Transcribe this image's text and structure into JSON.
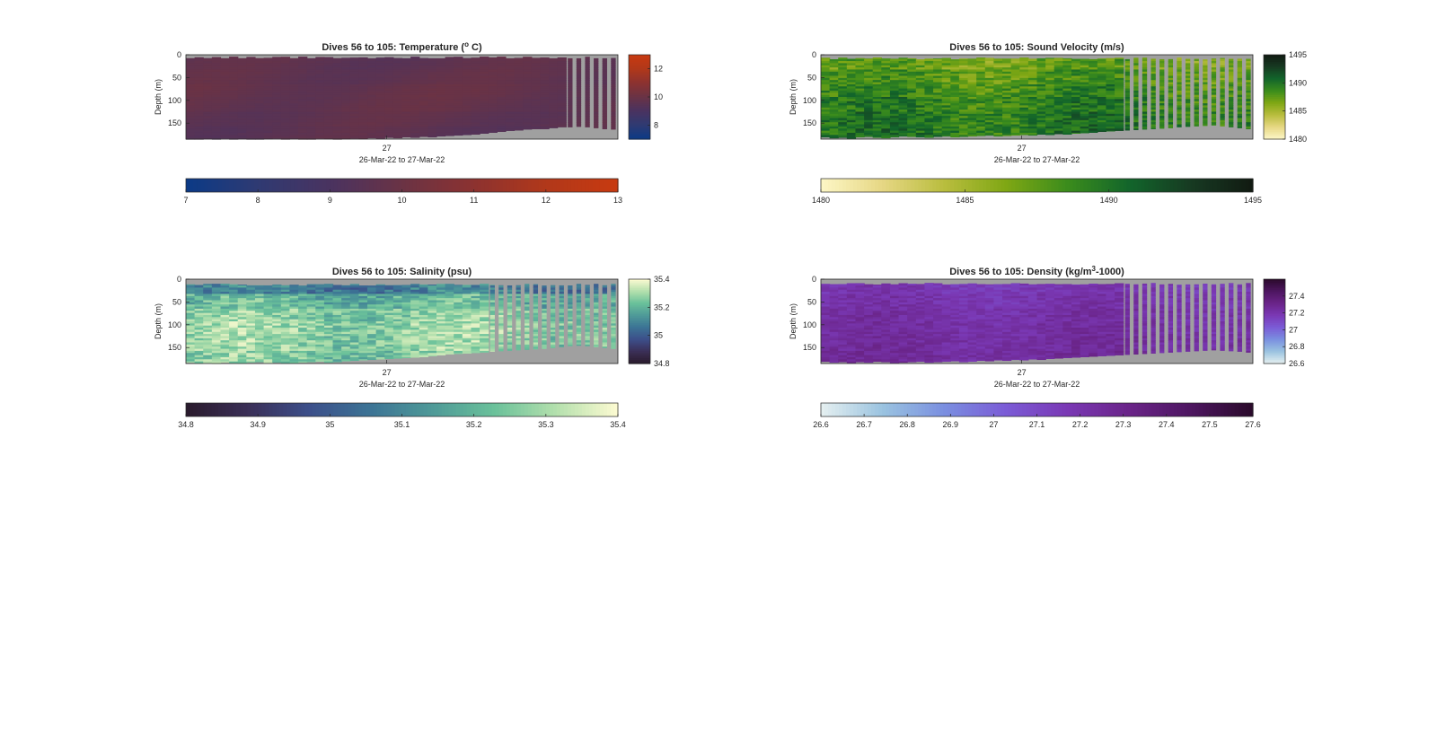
{
  "figure": {
    "background": "#ffffff",
    "nodata_color": "#a0a0a0"
  },
  "chart_data": [
    {
      "type": "heatmap",
      "title": "Dives 56 to 105: Temperature (",
      "title_sup": "o",
      "title_suffix": " C)",
      "xlabel": "26-Mar-22 to 27-Mar-22",
      "ylabel": "Depth (m)",
      "x_ticks": [
        "27"
      ],
      "x_tick_fraction": 0.465,
      "y_ticks": [
        0,
        50,
        100,
        150
      ],
      "ylim": [
        0,
        185
      ],
      "dives": [
        56,
        105
      ],
      "bottom_depths": [
        185,
        186,
        184,
        185,
        183,
        186,
        184,
        185,
        186,
        184,
        183,
        185,
        184,
        186,
        185,
        183,
        184,
        185,
        184,
        183,
        184,
        182,
        183,
        181,
        182,
        180,
        181,
        179,
        180,
        178,
        177,
        176,
        175,
        174,
        172,
        170,
        168,
        166,
        165,
        163,
        162,
        162,
        160,
        158,
        158,
        157,
        158,
        160,
        162,
        163
      ],
      "surface_gap": 4,
      "striped_from_dive": 100,
      "value_pattern": "smooth",
      "field_base": 9.6,
      "field_amp": 0.35,
      "vertical_pattern": [
        0.0,
        0.2,
        0.5,
        0.4,
        0.1,
        -0.2
      ],
      "colormap": {
        "name": "thermal",
        "stops": [
          "#0b3a86",
          "#2f3a72",
          "#4a3360",
          "#6a3345",
          "#8c3230",
          "#b1381a",
          "#c83a10"
        ],
        "min": 7,
        "max": 13
      },
      "side_colorbar_ticks": [
        8,
        10,
        12
      ],
      "bottom_colorbar_ticks": [
        7,
        8,
        9,
        10,
        11,
        12,
        13
      ]
    },
    {
      "type": "heatmap",
      "title": "Dives 56 to 105: Sound Velocity (m/s)",
      "title_sup": "",
      "title_suffix": "",
      "xlabel": "26-Mar-22 to 27-Mar-22",
      "ylabel": "Depth (m)",
      "x_ticks": [
        "27"
      ],
      "x_tick_fraction": 0.465,
      "y_ticks": [
        0,
        50,
        100,
        150
      ],
      "ylim": [
        0,
        185
      ],
      "dives": [
        56,
        105
      ],
      "bottom_depths": [
        180,
        182,
        181,
        183,
        180,
        179,
        181,
        182,
        180,
        178,
        179,
        180,
        181,
        179,
        178,
        180,
        179,
        178,
        177,
        176,
        178,
        177,
        176,
        175,
        176,
        174,
        175,
        173,
        174,
        172,
        171,
        170,
        168,
        167,
        166,
        165,
        164,
        163,
        162,
        161,
        160,
        158,
        157,
        156,
        155,
        154,
        156,
        158,
        160,
        162
      ],
      "surface_gap": 6,
      "striped_from_dive": 91,
      "value_pattern": "noisy",
      "field_base": 1489.0,
      "field_amp": 1.6,
      "vertical_pattern": [
        -2.0,
        -1.2,
        -0.4,
        0.2,
        0.6,
        0.8
      ],
      "colormap": {
        "name": "speed",
        "stops": [
          "#fdf7c6",
          "#e6d784",
          "#b9bd3e",
          "#7fa714",
          "#3b8c1c",
          "#12652b",
          "#173a22",
          "#111a12"
        ],
        "min": 1480,
        "max": 1495
      },
      "side_colorbar_ticks": [
        1480,
        1485,
        1490,
        1495
      ],
      "bottom_colorbar_ticks": [
        1480,
        1485,
        1490,
        1495
      ]
    },
    {
      "type": "heatmap",
      "title": "Dives 56 to 105: Salinity (psu)",
      "title_sup": "",
      "title_suffix": "",
      "xlabel": "26-Mar-22 to 27-Mar-22",
      "ylabel": "Depth (m)",
      "x_ticks": [
        "27"
      ],
      "x_tick_fraction": 0.465,
      "y_ticks": [
        0,
        50,
        100,
        150
      ],
      "ylim": [
        0,
        185
      ],
      "dives": [
        56,
        105
      ],
      "bottom_depths": [
        182,
        184,
        183,
        185,
        182,
        183,
        184,
        182,
        181,
        183,
        182,
        184,
        183,
        182,
        181,
        180,
        182,
        181,
        179,
        178,
        177,
        176,
        175,
        174,
        173,
        172,
        171,
        170,
        168,
        166,
        164,
        163,
        162,
        161,
        160,
        158,
        157,
        156,
        155,
        154,
        153,
        152,
        150,
        148,
        146,
        145,
        146,
        148,
        150,
        152
      ],
      "surface_gap": 10,
      "striped_from_dive": 91,
      "value_pattern": "noisy",
      "field_base": 35.22,
      "field_amp": 0.07,
      "vertical_pattern": [
        -0.14,
        -0.02,
        0.04,
        0.06,
        0.05,
        0.03
      ],
      "colormap": {
        "name": "haline",
        "stops": [
          "#2a1a2c",
          "#3b2f57",
          "#3c4f8a",
          "#3c7495",
          "#4f9a98",
          "#6ac19a",
          "#b4e0ad",
          "#fdfbd2"
        ],
        "min": 34.8,
        "max": 35.4
      },
      "side_colorbar_ticks": [
        34.8,
        35,
        35.2,
        35.4
      ],
      "bottom_colorbar_ticks": [
        34.8,
        34.9,
        35,
        35.1,
        35.2,
        35.3,
        35.4
      ]
    },
    {
      "type": "heatmap",
      "title": "Dives 56 to 105: Density (kg/m",
      "title_sup": "3",
      "title_suffix": "-1000)",
      "xlabel": "26-Mar-22 to 27-Mar-22",
      "ylabel": "Depth (m)",
      "x_ticks": [
        "27"
      ],
      "x_tick_fraction": 0.465,
      "y_ticks": [
        0,
        50,
        100,
        150
      ],
      "ylim": [
        0,
        185
      ],
      "dives": [
        56,
        105
      ],
      "bottom_depths": [
        180,
        182,
        181,
        183,
        181,
        182,
        180,
        181,
        183,
        182,
        181,
        180,
        182,
        181,
        180,
        179,
        181,
        180,
        178,
        179,
        177,
        178,
        176,
        177,
        175,
        176,
        174,
        173,
        172,
        171,
        170,
        169,
        168,
        167,
        166,
        165,
        164,
        163,
        162,
        161,
        160,
        159,
        158,
        157,
        156,
        155,
        156,
        157,
        158,
        160
      ],
      "surface_gap": 8,
      "striped_from_dive": 91,
      "value_pattern": "noisy",
      "field_base": 27.2,
      "field_amp": 0.05,
      "vertical_pattern": [
        -0.02,
        0.0,
        0.02,
        0.03,
        0.04,
        0.05
      ],
      "colormap": {
        "name": "dense",
        "stops": [
          "#e6f0f0",
          "#9ac3e0",
          "#7a8fe0",
          "#7b5bd6",
          "#7a38b4",
          "#6a2488",
          "#4d1660",
          "#2a0a2a"
        ],
        "min": 26.6,
        "max": 27.6
      },
      "side_colorbar_ticks": [
        26.6,
        26.8,
        27,
        27.2,
        27.4
      ],
      "bottom_colorbar_ticks": [
        26.6,
        26.7,
        26.8,
        26.9,
        27,
        27.1,
        27.2,
        27.3,
        27.4,
        27.5,
        27.6
      ]
    }
  ]
}
